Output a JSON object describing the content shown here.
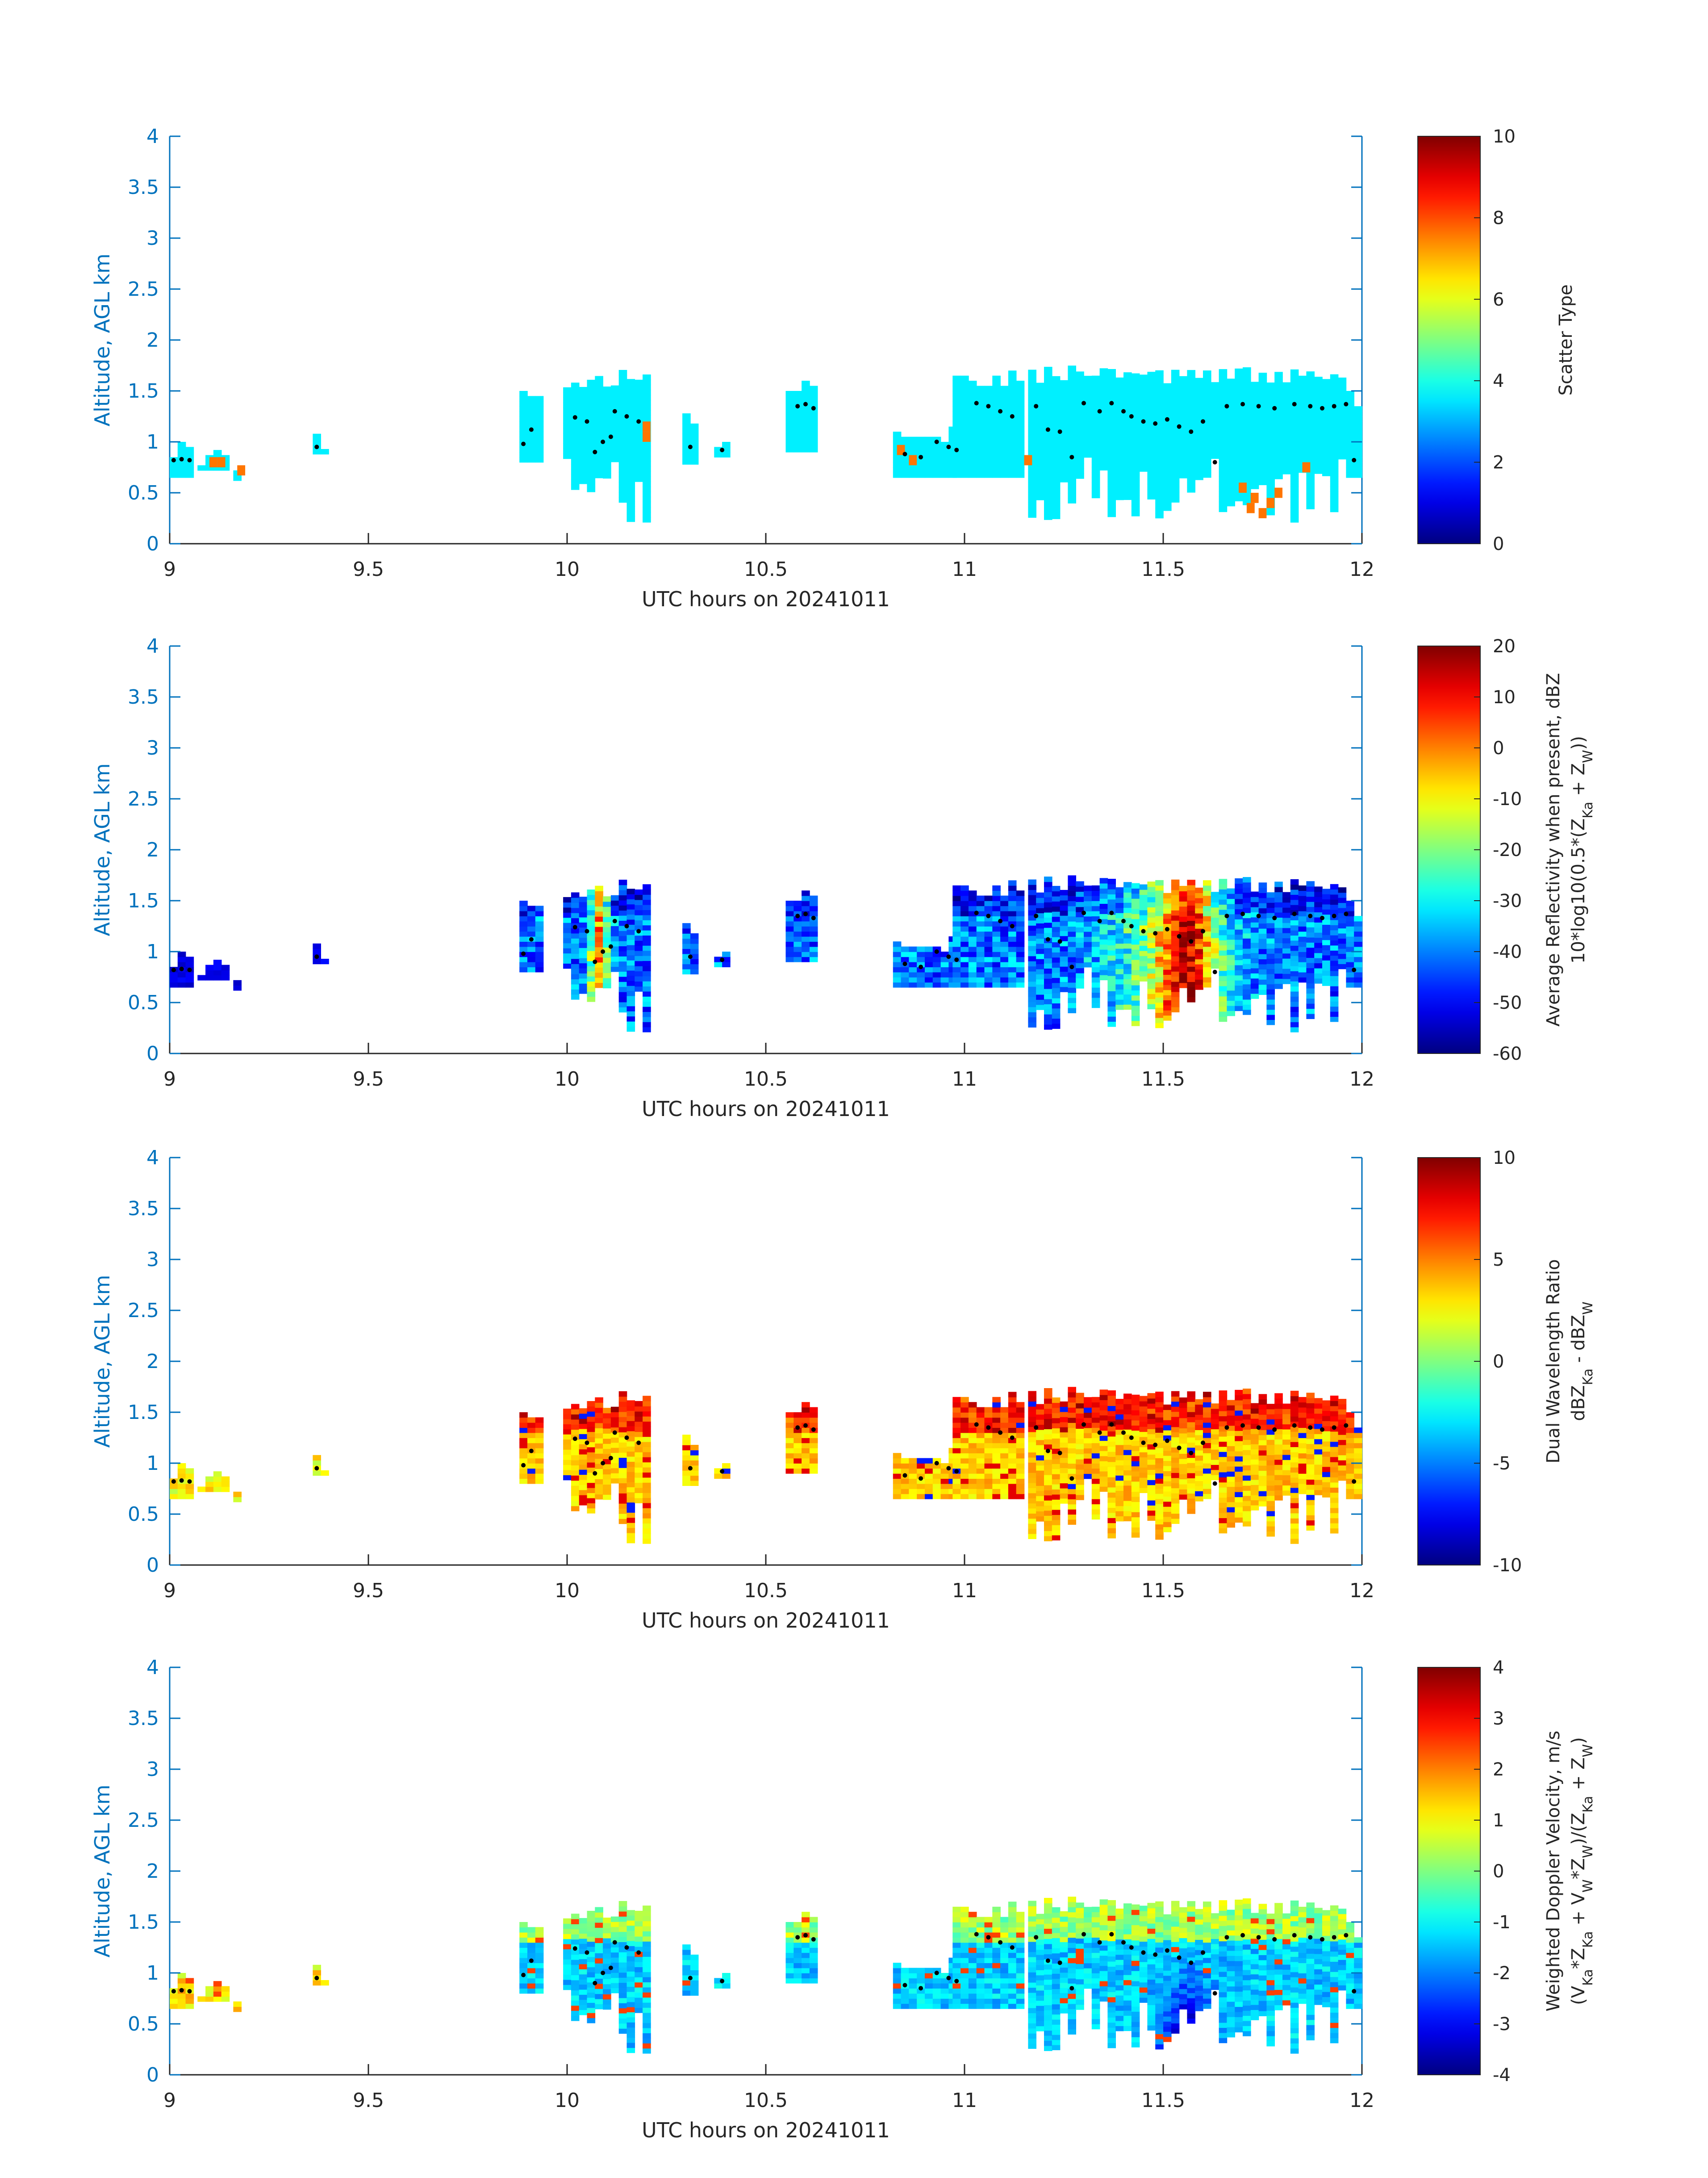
{
  "figure": {
    "background": "#ffffff",
    "axis_color": "#0072bd",
    "tick_text_color": "#262626"
  },
  "chart_data": [
    {
      "type": "heatmap",
      "xlabel": "UTC hours on 20241011",
      "ylabel": "Altitude, AGL km",
      "xlim": [
        9,
        12
      ],
      "ylim": [
        0,
        4
      ],
      "xticks": [
        "9",
        "9.5",
        "10",
        "10.5",
        "11",
        "11.5",
        "12"
      ],
      "yticks": [
        "0",
        "0.5",
        "1",
        "1.5",
        "2",
        "2.5",
        "3",
        "3.5",
        "4"
      ],
      "colorbar": {
        "colormap": "jet",
        "range": [
          0,
          10
        ],
        "ticks": [
          "0",
          "2",
          "4",
          "6",
          "8",
          "10"
        ],
        "label_lines": [
          "Scatter Type"
        ]
      },
      "fill_value": 3.6,
      "outlier_value": 7.6,
      "outliers": [
        [
          9.1,
          0.8
        ],
        [
          9.12,
          0.8
        ],
        [
          9.17,
          0.72
        ],
        [
          10.19,
          1.05
        ],
        [
          10.19,
          1.15
        ],
        [
          10.83,
          0.92
        ],
        [
          10.86,
          0.82
        ],
        [
          11.15,
          0.82
        ],
        [
          11.69,
          0.55
        ],
        [
          11.71,
          0.35
        ],
        [
          11.72,
          0.45
        ],
        [
          11.74,
          0.3
        ],
        [
          11.76,
          0.4
        ],
        [
          11.78,
          0.5
        ],
        [
          11.85,
          0.75
        ]
      ]
    },
    {
      "type": "heatmap",
      "xlabel": "UTC hours on 20241011",
      "ylabel": "Altitude, AGL km",
      "xlim": [
        9,
        12
      ],
      "ylim": [
        0,
        4
      ],
      "xticks": [
        "9",
        "9.5",
        "10",
        "10.5",
        "11",
        "11.5",
        "12"
      ],
      "yticks": [
        "0",
        "0.5",
        "1",
        "1.5",
        "2",
        "2.5",
        "3",
        "3.5",
        "4"
      ],
      "colorbar": {
        "colormap": "jet",
        "range": [
          -60,
          20
        ],
        "ticks": [
          "-60",
          "-50",
          "-40",
          "-30",
          "-20",
          "-10",
          "0",
          "10",
          "20"
        ],
        "label_lines": [
          "Average Reflectivity when present, dBZ",
          "10*log10(0.5*(Z_Ka + Z_W))"
        ]
      }
    },
    {
      "type": "heatmap",
      "xlabel": "UTC hours on 20241011",
      "ylabel": "Altitude, AGL km",
      "xlim": [
        9,
        12
      ],
      "ylim": [
        0,
        4
      ],
      "xticks": [
        "9",
        "9.5",
        "10",
        "10.5",
        "11",
        "11.5",
        "12"
      ],
      "yticks": [
        "0",
        "0.5",
        "1",
        "1.5",
        "2",
        "2.5",
        "3",
        "3.5",
        "4"
      ],
      "colorbar": {
        "colormap": "jet",
        "range": [
          -10,
          10
        ],
        "ticks": [
          "-10",
          "-5",
          "0",
          "5",
          "10"
        ],
        "label_lines": [
          "Dual Wavelength Ratio",
          "dBZ_Ka - dBZ_W"
        ]
      }
    },
    {
      "type": "heatmap",
      "xlabel": "UTC hours on 20241011",
      "ylabel": "Altitude, AGL km",
      "xlim": [
        9,
        12
      ],
      "ylim": [
        0,
        4
      ],
      "xticks": [
        "9",
        "9.5",
        "10",
        "10.5",
        "11",
        "11.5",
        "12"
      ],
      "yticks": [
        "0",
        "0.5",
        "1",
        "1.5",
        "2",
        "2.5",
        "3",
        "3.5",
        "4"
      ],
      "colorbar": {
        "colormap": "jet",
        "range": [
          -4,
          4
        ],
        "ticks": [
          "-4",
          "-3",
          "-2",
          "-1",
          "0",
          "1",
          "2",
          "3",
          "4"
        ],
        "label_lines": [
          "Weighted Doppler Velocity, m/s",
          "(V_Ka*Z_Ka + V_W*Z_W)/(Z_Ka + Z_W)"
        ]
      }
    }
  ],
  "cloud_regions": [
    {
      "x0": 9.0,
      "x1": 9.05,
      "bot": 0.65,
      "top": 0.97
    },
    {
      "x0": 9.07,
      "x1": 9.15,
      "bot": 0.72,
      "top": 0.9
    },
    {
      "x0": 9.16,
      "x1": 9.18,
      "bot": 0.62,
      "top": 0.8
    },
    {
      "x0": 9.36,
      "x1": 9.39,
      "bot": 0.88,
      "top": 1.08
    },
    {
      "x0": 9.88,
      "x1": 9.94,
      "bot": 0.8,
      "top": 1.55
    },
    {
      "x0": 9.99,
      "x1": 10.2,
      "bot": 0.18,
      "top": 1.68
    },
    {
      "x0": 10.29,
      "x1": 10.32,
      "bot": 0.78,
      "top": 1.25
    },
    {
      "x0": 10.37,
      "x1": 10.4,
      "bot": 0.85,
      "top": 1.05
    },
    {
      "x0": 10.55,
      "x1": 10.63,
      "bot": 0.9,
      "top": 1.56
    },
    {
      "x0": 10.82,
      "x1": 10.97,
      "bot": 0.65,
      "top": 1.15
    },
    {
      "x0": 10.97,
      "x1": 11.14,
      "bot": 0.65,
      "top": 1.68
    },
    {
      "x0": 11.16,
      "x1": 11.96,
      "bot": 0.18,
      "top": 1.72
    },
    {
      "x0": 11.96,
      "x1": 12.0,
      "bot": 0.65,
      "top": 1.5
    }
  ],
  "centroid_points": [
    [
      9.01,
      0.82
    ],
    [
      9.03,
      0.83
    ],
    [
      9.05,
      0.82
    ],
    [
      9.37,
      0.95
    ],
    [
      9.89,
      0.98
    ],
    [
      9.91,
      1.12
    ],
    [
      10.02,
      1.24
    ],
    [
      10.05,
      1.2
    ],
    [
      10.07,
      0.9
    ],
    [
      10.09,
      1.0
    ],
    [
      10.11,
      1.05
    ],
    [
      10.12,
      1.3
    ],
    [
      10.15,
      1.25
    ],
    [
      10.18,
      1.2
    ],
    [
      10.31,
      0.95
    ],
    [
      10.39,
      0.92
    ],
    [
      10.58,
      1.35
    ],
    [
      10.6,
      1.37
    ],
    [
      10.62,
      1.33
    ],
    [
      10.85,
      0.88
    ],
    [
      10.89,
      0.85
    ],
    [
      10.93,
      1.0
    ],
    [
      10.96,
      0.95
    ],
    [
      10.98,
      0.92
    ],
    [
      11.03,
      1.38
    ],
    [
      11.06,
      1.35
    ],
    [
      11.09,
      1.3
    ],
    [
      11.12,
      1.25
    ],
    [
      11.18,
      1.35
    ],
    [
      11.21,
      1.12
    ],
    [
      11.24,
      1.1
    ],
    [
      11.27,
      0.85
    ],
    [
      11.3,
      1.38
    ],
    [
      11.34,
      1.3
    ],
    [
      11.37,
      1.38
    ],
    [
      11.4,
      1.3
    ],
    [
      11.42,
      1.25
    ],
    [
      11.45,
      1.2
    ],
    [
      11.48,
      1.18
    ],
    [
      11.51,
      1.22
    ],
    [
      11.54,
      1.15
    ],
    [
      11.57,
      1.1
    ],
    [
      11.6,
      1.2
    ],
    [
      11.63,
      0.8
    ],
    [
      11.66,
      1.35
    ],
    [
      11.7,
      1.37
    ],
    [
      11.74,
      1.35
    ],
    [
      11.78,
      1.33
    ],
    [
      11.83,
      1.37
    ],
    [
      11.87,
      1.35
    ],
    [
      11.9,
      1.33
    ],
    [
      11.93,
      1.35
    ],
    [
      11.96,
      1.37
    ],
    [
      11.98,
      0.82
    ]
  ]
}
